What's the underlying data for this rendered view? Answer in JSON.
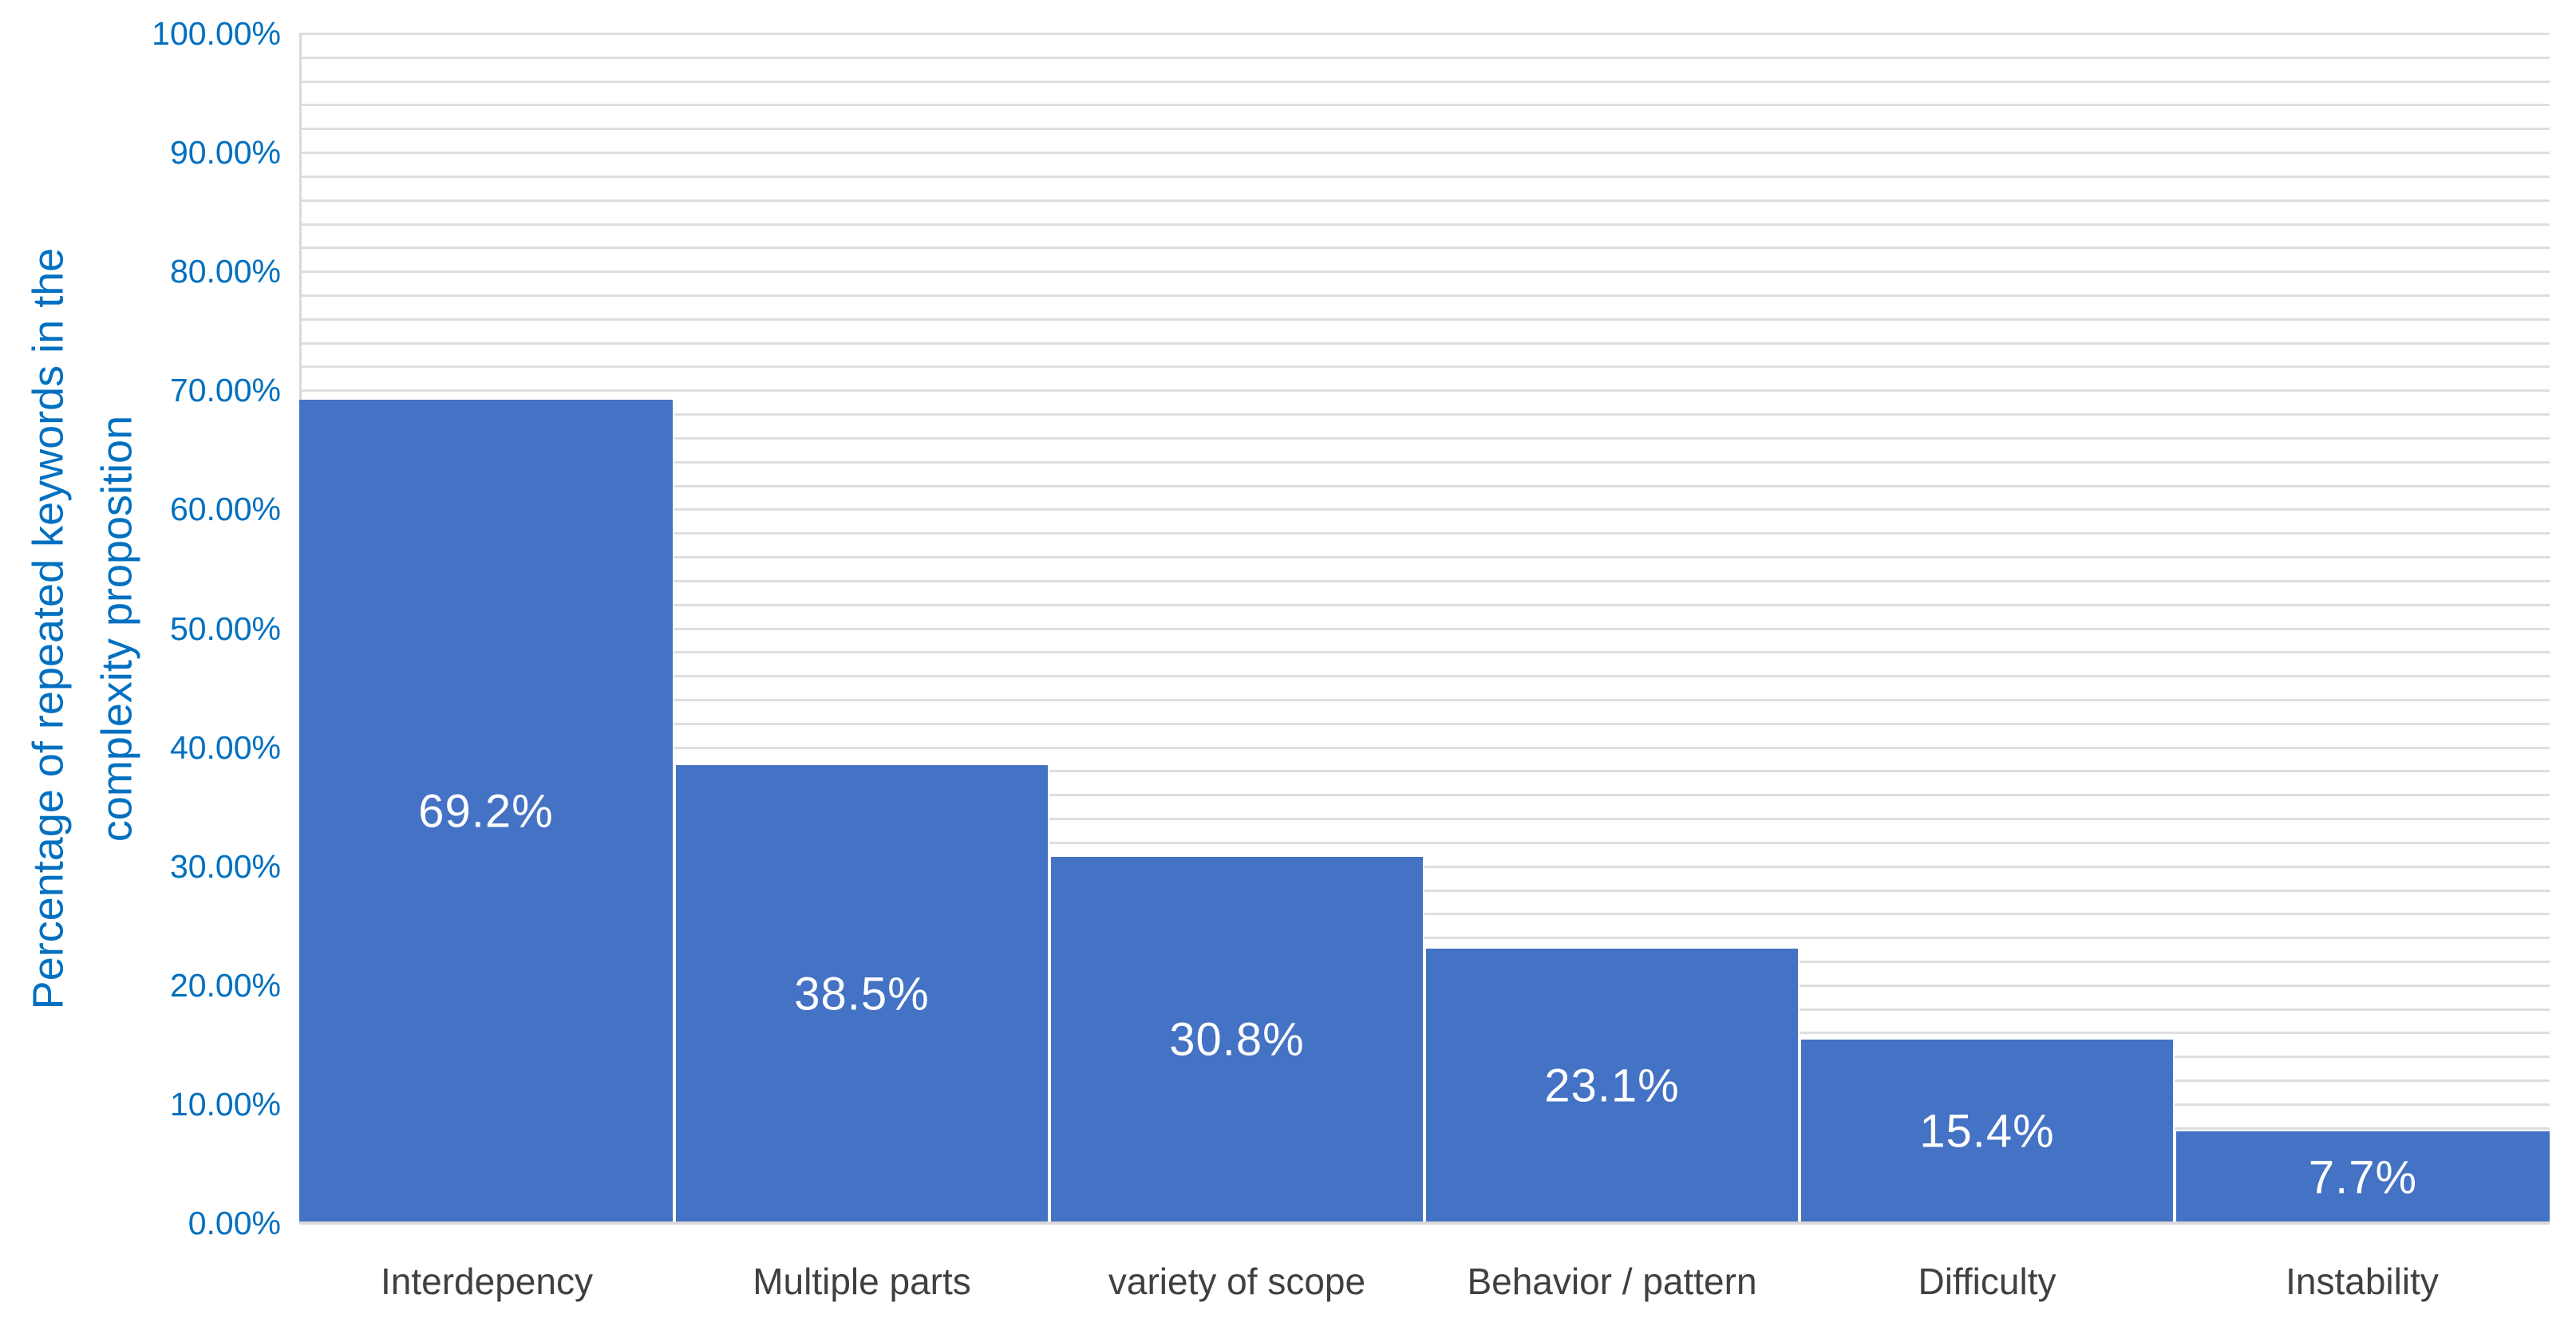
{
  "chart_data": {
    "type": "bar",
    "title": "",
    "categories": [
      "Interdepency",
      "Multiple parts",
      "variety of scope",
      "Behavior / pattern",
      "Difficulty",
      "Instability"
    ],
    "values": [
      69.2,
      38.5,
      30.8,
      23.1,
      15.4,
      7.7
    ],
    "data_labels": [
      "69.2%",
      "38.5%",
      "30.8%",
      "23.1%",
      "15.4%",
      "7.7%"
    ],
    "xlabel": "",
    "ylabel": "Percentage of repeated keywords in the complexity proposition",
    "ylabel_lines": [
      "Percentage of repeated keywords in the",
      "complexity proposition"
    ],
    "ylim": [
      0,
      100
    ],
    "y_major_unit": 10,
    "y_minor_unit": 2,
    "y_tick_labels": [
      "0.00%",
      "10.00%",
      "20.00%",
      "30.00%",
      "40.00%",
      "50.00%",
      "60.00%",
      "70.00%",
      "80.00%",
      "90.00%",
      "100.00%"
    ],
    "grid": "horizontal major and minor gridlines on",
    "legend": "none",
    "colors": {
      "bar_fill": "#4472C4",
      "bar_separator": "#FFFFFF",
      "data_label_text": "#FFFFFF",
      "axis_tick_text": "#0070C0",
      "ylabel_text": "#0070C0",
      "category_text": "#404040",
      "gridline": "#DEDEDE",
      "axis_line": "#D9D9D9",
      "background": "#FFFFFF"
    }
  }
}
